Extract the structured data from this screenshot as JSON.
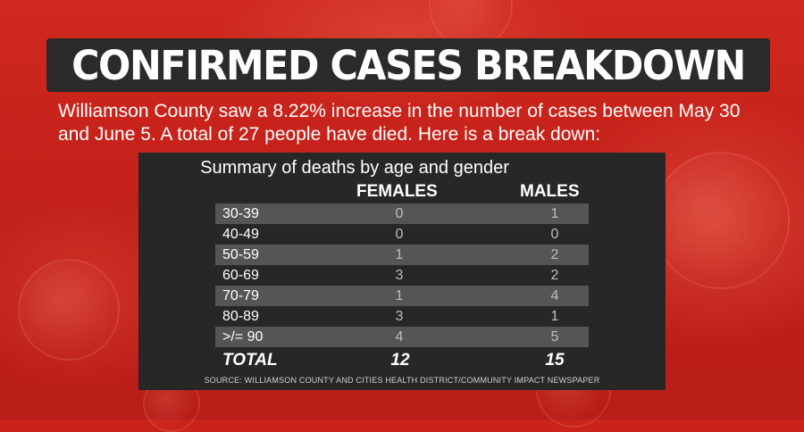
{
  "title": "CONFIRMED CASES BREAKDOWN",
  "intro": "Williamson County saw a 8.22% increase in the number of cases between May 30 and June 5. A total of 27 people have died. Here is a break down:",
  "table": {
    "title": "Summary of deaths by age and gender",
    "headers": {
      "females": "FEMALES",
      "males": "MALES"
    },
    "rows": [
      {
        "age": "30-39",
        "females": "0",
        "males": "1"
      },
      {
        "age": "40-49",
        "females": "0",
        "males": "0"
      },
      {
        "age": "50-59",
        "females": "1",
        "males": "2"
      },
      {
        "age": "60-69",
        "females": "3",
        "males": "2"
      },
      {
        "age": "70-79",
        "females": "1",
        "males": "4"
      },
      {
        "age": "80-89",
        "females": "3",
        "males": "1"
      },
      {
        "age": ">/= 90",
        "females": "4",
        "males": "5"
      }
    ],
    "total": {
      "label": "TOTAL",
      "females": "12",
      "males": "15"
    },
    "source": "SOURCE: WILLIAMSON COUNTY AND CITIES HEALTH DISTRICT/COMMUNITY IMPACT NEWSPAPER"
  },
  "colors": {
    "background": "#c9231b",
    "panel": "#272727",
    "row_shade": "#555555",
    "text": "#ffffff"
  }
}
